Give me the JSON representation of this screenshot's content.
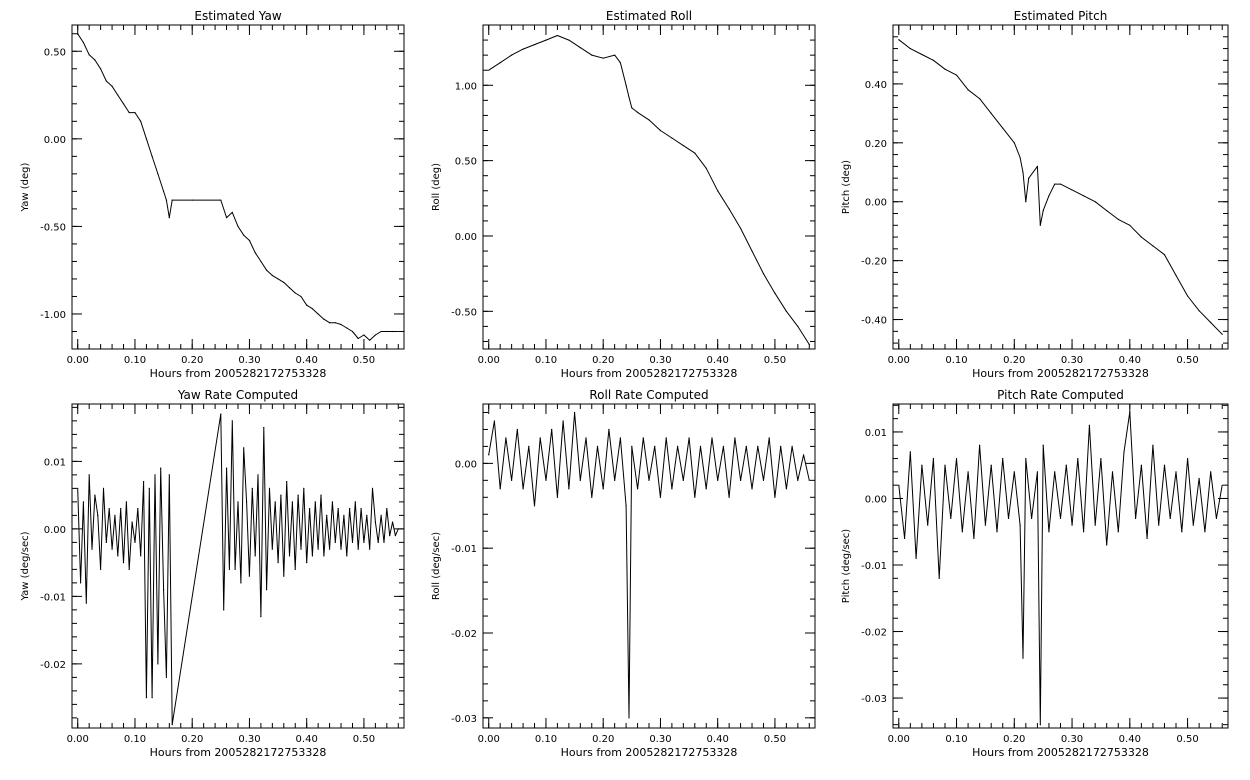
{
  "colors": {
    "background": "#ffffff",
    "line": "#000000",
    "axes": "#000000"
  },
  "chart_data": [
    {
      "type": "line",
      "title": "Estimated Yaw",
      "xlabel": "Hours from 2005282172753328",
      "ylabel": "Yaw (deg)",
      "xlim": [
        -0.01,
        0.57
      ],
      "ylim": [
        -1.2,
        0.65
      ],
      "xticks": [
        0.0,
        0.1,
        0.2,
        0.3,
        0.4,
        0.5
      ],
      "xtick_labels": [
        "0.00",
        "0.10",
        "0.20",
        "0.30",
        "0.40",
        "0.50"
      ],
      "yticks": [
        0.5,
        0.0,
        -0.5,
        -1.0
      ],
      "ytick_labels": [
        "0.50",
        "0.00",
        "-0.50",
        "-1.00"
      ],
      "grid": false,
      "series": [
        {
          "x": [
            0.0,
            0.01,
            0.02,
            0.03,
            0.04,
            0.05,
            0.06,
            0.07,
            0.08,
            0.09,
            0.1,
            0.11,
            0.12,
            0.13,
            0.14,
            0.15,
            0.155,
            0.16,
            0.165,
            0.2,
            0.25,
            0.26,
            0.27,
            0.28,
            0.29,
            0.3,
            0.31,
            0.32,
            0.33,
            0.34,
            0.35,
            0.36,
            0.37,
            0.38,
            0.39,
            0.4,
            0.41,
            0.42,
            0.43,
            0.44,
            0.45,
            0.46,
            0.47,
            0.48,
            0.49,
            0.5,
            0.51,
            0.52,
            0.53,
            0.54,
            0.55,
            0.56
          ],
          "y": [
            0.6,
            0.55,
            0.48,
            0.45,
            0.4,
            0.33,
            0.3,
            0.25,
            0.2,
            0.15,
            0.15,
            0.1,
            0.0,
            -0.1,
            -0.2,
            -0.3,
            -0.35,
            -0.45,
            -0.35,
            -0.35,
            -0.35,
            -0.45,
            -0.42,
            -0.5,
            -0.55,
            -0.58,
            -0.65,
            -0.7,
            -0.75,
            -0.78,
            -0.8,
            -0.82,
            -0.85,
            -0.88,
            -0.9,
            -0.95,
            -0.97,
            -1.0,
            -1.03,
            -1.05,
            -1.05,
            -1.06,
            -1.08,
            -1.1,
            -1.14,
            -1.12,
            -1.15,
            -1.12,
            -1.1,
            -1.1,
            -1.1,
            -1.1
          ]
        }
      ]
    },
    {
      "type": "line",
      "title": "Estimated Roll",
      "xlabel": "Hours from 2005282172753328",
      "ylabel": "Roll (deg)",
      "xlim": [
        -0.01,
        0.57
      ],
      "ylim": [
        -0.75,
        1.4
      ],
      "xticks": [
        0.0,
        0.1,
        0.2,
        0.3,
        0.4,
        0.5
      ],
      "xtick_labels": [
        "0.00",
        "0.10",
        "0.20",
        "0.30",
        "0.40",
        "0.50"
      ],
      "yticks": [
        1.0,
        0.5,
        0.0,
        -0.5
      ],
      "ytick_labels": [
        "1.00",
        "0.50",
        "0.00",
        "-0.50"
      ],
      "grid": false,
      "series": [
        {
          "x": [
            0.0,
            0.02,
            0.04,
            0.06,
            0.08,
            0.1,
            0.12,
            0.14,
            0.16,
            0.18,
            0.2,
            0.22,
            0.23,
            0.24,
            0.245,
            0.25,
            0.26,
            0.28,
            0.3,
            0.32,
            0.34,
            0.36,
            0.38,
            0.4,
            0.42,
            0.44,
            0.46,
            0.48,
            0.5,
            0.52,
            0.54,
            0.56
          ],
          "y": [
            1.1,
            1.15,
            1.2,
            1.24,
            1.27,
            1.3,
            1.33,
            1.3,
            1.25,
            1.2,
            1.18,
            1.2,
            1.15,
            1.0,
            0.92,
            0.85,
            0.82,
            0.77,
            0.7,
            0.65,
            0.6,
            0.55,
            0.45,
            0.3,
            0.18,
            0.05,
            -0.1,
            -0.25,
            -0.38,
            -0.5,
            -0.6,
            -0.72
          ]
        }
      ]
    },
    {
      "type": "line",
      "title": "Estimated Pitch",
      "xlabel": "Hours from 2005282172753328",
      "ylabel": "Pitch (deg)",
      "xlim": [
        -0.01,
        0.57
      ],
      "ylim": [
        -0.5,
        0.6
      ],
      "xticks": [
        0.0,
        0.1,
        0.2,
        0.3,
        0.4,
        0.5
      ],
      "xtick_labels": [
        "0.00",
        "0.10",
        "0.20",
        "0.30",
        "0.40",
        "0.50"
      ],
      "yticks": [
        0.4,
        0.2,
        0.0,
        -0.2,
        -0.4
      ],
      "ytick_labels": [
        "0.40",
        "0.20",
        "0.00",
        "-0.20",
        "-0.40"
      ],
      "grid": false,
      "series": [
        {
          "x": [
            0.0,
            0.02,
            0.04,
            0.06,
            0.08,
            0.1,
            0.12,
            0.14,
            0.16,
            0.18,
            0.2,
            0.21,
            0.215,
            0.22,
            0.225,
            0.24,
            0.245,
            0.25,
            0.26,
            0.27,
            0.28,
            0.3,
            0.32,
            0.34,
            0.36,
            0.38,
            0.4,
            0.42,
            0.44,
            0.46,
            0.48,
            0.5,
            0.52,
            0.54,
            0.56
          ],
          "y": [
            0.55,
            0.52,
            0.5,
            0.48,
            0.45,
            0.43,
            0.38,
            0.35,
            0.3,
            0.25,
            0.2,
            0.15,
            0.1,
            0.0,
            0.08,
            0.12,
            -0.08,
            -0.03,
            0.02,
            0.06,
            0.06,
            0.04,
            0.02,
            0.0,
            -0.03,
            -0.06,
            -0.08,
            -0.12,
            -0.15,
            -0.18,
            -0.25,
            -0.32,
            -0.37,
            -0.41,
            -0.45
          ]
        }
      ]
    },
    {
      "type": "line",
      "title": "Yaw Rate Computed",
      "xlabel": "Hours from 2005282172753328",
      "ylabel": "Yaw (deg/sec)",
      "xlim": [
        -0.01,
        0.57
      ],
      "ylim": [
        -0.0295,
        0.0185
      ],
      "xticks": [
        0.0,
        0.1,
        0.2,
        0.3,
        0.4,
        0.5
      ],
      "xtick_labels": [
        "0.00",
        "0.10",
        "0.20",
        "0.30",
        "0.40",
        "0.50"
      ],
      "yticks": [
        0.01,
        0.0,
        -0.01,
        -0.02
      ],
      "ytick_labels": [
        "0.01",
        "0.00",
        "-0.01",
        "-0.02"
      ],
      "grid": false,
      "series": [
        {
          "x": [
            0.0,
            0.005,
            0.01,
            0.015,
            0.02,
            0.025,
            0.03,
            0.035,
            0.04,
            0.045,
            0.05,
            0.055,
            0.06,
            0.065,
            0.07,
            0.075,
            0.08,
            0.085,
            0.09,
            0.095,
            0.1,
            0.105,
            0.11,
            0.115,
            0.12,
            0.125,
            0.13,
            0.135,
            0.14,
            0.145,
            0.15,
            0.155,
            0.16,
            0.165,
            0.25,
            0.255,
            0.26,
            0.265,
            0.27,
            0.275,
            0.28,
            0.285,
            0.29,
            0.295,
            0.3,
            0.305,
            0.31,
            0.315,
            0.32,
            0.325,
            0.33,
            0.335,
            0.34,
            0.345,
            0.35,
            0.355,
            0.36,
            0.365,
            0.37,
            0.375,
            0.38,
            0.385,
            0.39,
            0.395,
            0.4,
            0.405,
            0.41,
            0.415,
            0.42,
            0.425,
            0.43,
            0.435,
            0.44,
            0.445,
            0.45,
            0.455,
            0.46,
            0.465,
            0.47,
            0.475,
            0.48,
            0.485,
            0.49,
            0.495,
            0.5,
            0.505,
            0.51,
            0.515,
            0.52,
            0.525,
            0.53,
            0.535,
            0.54,
            0.545,
            0.55,
            0.555,
            0.56
          ],
          "y": [
            0.006,
            -0.008,
            0.004,
            -0.011,
            0.008,
            -0.003,
            0.005,
            0.002,
            -0.006,
            0.006,
            -0.002,
            0.003,
            -0.003,
            0.002,
            -0.004,
            0.003,
            -0.005,
            0.004,
            -0.006,
            0.001,
            -0.002,
            0.003,
            -0.004,
            0.007,
            -0.025,
            0.006,
            -0.025,
            0.008,
            -0.02,
            0.009,
            -0.009,
            -0.022,
            0.008,
            -0.029,
            0.017,
            -0.012,
            0.009,
            -0.006,
            0.016,
            -0.006,
            0.004,
            -0.008,
            0.012,
            0.004,
            -0.007,
            0.006,
            -0.004,
            0.008,
            -0.013,
            0.015,
            -0.009,
            0.006,
            -0.003,
            0.004,
            -0.005,
            0.005,
            -0.007,
            0.007,
            -0.004,
            0.004,
            -0.006,
            0.005,
            -0.003,
            0.006,
            -0.005,
            0.003,
            -0.004,
            0.004,
            -0.003,
            0.005,
            -0.004,
            0.002,
            -0.003,
            0.004,
            -0.002,
            0.003,
            -0.003,
            0.002,
            -0.004,
            0.003,
            -0.002,
            0.004,
            -0.003,
            0.003,
            -0.002,
            0.002,
            -0.003,
            0.006,
            0.001,
            -0.002,
            0.002,
            -0.002,
            0.003,
            -0.001,
            0.001,
            -0.001,
            0.0
          ]
        }
      ]
    },
    {
      "type": "line",
      "title": "Roll Rate Computed",
      "xlabel": "Hours from 2005282172753328",
      "ylabel": "Roll (deg/sec)",
      "xlim": [
        -0.01,
        0.57
      ],
      "ylim": [
        -0.0312,
        0.007
      ],
      "xticks": [
        0.0,
        0.1,
        0.2,
        0.3,
        0.4,
        0.5
      ],
      "xtick_labels": [
        "0.00",
        "0.10",
        "0.20",
        "0.30",
        "0.40",
        "0.50"
      ],
      "yticks": [
        0.0,
        -0.01,
        -0.02,
        -0.03
      ],
      "ytick_labels": [
        "0.00",
        "-0.01",
        "-0.02",
        "-0.03"
      ],
      "grid": false,
      "series": [
        {
          "x": [
            0.0,
            0.01,
            0.02,
            0.03,
            0.04,
            0.05,
            0.06,
            0.07,
            0.08,
            0.09,
            0.1,
            0.11,
            0.12,
            0.13,
            0.14,
            0.15,
            0.16,
            0.17,
            0.18,
            0.19,
            0.2,
            0.21,
            0.22,
            0.23,
            0.24,
            0.245,
            0.25,
            0.26,
            0.27,
            0.28,
            0.29,
            0.3,
            0.31,
            0.32,
            0.33,
            0.34,
            0.35,
            0.36,
            0.37,
            0.38,
            0.39,
            0.4,
            0.41,
            0.42,
            0.43,
            0.44,
            0.45,
            0.46,
            0.47,
            0.48,
            0.49,
            0.5,
            0.51,
            0.52,
            0.53,
            0.54,
            0.55,
            0.56
          ],
          "y": [
            0.001,
            0.005,
            -0.003,
            0.003,
            -0.002,
            0.004,
            -0.003,
            0.002,
            -0.005,
            0.003,
            -0.002,
            0.004,
            -0.004,
            0.005,
            -0.003,
            0.006,
            -0.002,
            0.003,
            -0.004,
            0.002,
            -0.003,
            0.004,
            -0.002,
            0.003,
            -0.005,
            -0.03,
            0.002,
            -0.003,
            0.003,
            -0.002,
            0.002,
            -0.004,
            0.003,
            -0.003,
            0.002,
            -0.002,
            0.003,
            -0.004,
            0.002,
            -0.003,
            0.003,
            -0.002,
            0.002,
            -0.004,
            0.003,
            -0.002,
            0.002,
            -0.003,
            0.002,
            -0.002,
            0.003,
            -0.004,
            0.002,
            -0.003,
            0.002,
            -0.002,
            0.001,
            -0.002
          ]
        }
      ]
    },
    {
      "type": "line",
      "title": "Pitch Rate Computed",
      "xlabel": "Hours from 2005282172753328",
      "ylabel": "Pitch (deg/sec)",
      "xlim": [
        -0.01,
        0.57
      ],
      "ylim": [
        -0.0345,
        0.0142
      ],
      "xticks": [
        0.0,
        0.1,
        0.2,
        0.3,
        0.4,
        0.5
      ],
      "xtick_labels": [
        "0.00",
        "0.10",
        "0.20",
        "0.30",
        "0.40",
        "0.50"
      ],
      "yticks": [
        0.01,
        0.0,
        -0.01,
        -0.02,
        -0.03
      ],
      "ytick_labels": [
        "0.01",
        "0.00",
        "-0.01",
        "-0.02",
        "-0.03"
      ],
      "grid": false,
      "series": [
        {
          "x": [
            0.0,
            0.01,
            0.02,
            0.03,
            0.04,
            0.05,
            0.06,
            0.07,
            0.08,
            0.09,
            0.1,
            0.11,
            0.12,
            0.13,
            0.14,
            0.15,
            0.16,
            0.17,
            0.18,
            0.19,
            0.2,
            0.21,
            0.215,
            0.22,
            0.23,
            0.24,
            0.245,
            0.25,
            0.26,
            0.27,
            0.28,
            0.29,
            0.3,
            0.31,
            0.32,
            0.33,
            0.34,
            0.35,
            0.36,
            0.37,
            0.38,
            0.39,
            0.4,
            0.41,
            0.42,
            0.43,
            0.44,
            0.45,
            0.46,
            0.47,
            0.48,
            0.49,
            0.5,
            0.51,
            0.52,
            0.53,
            0.54,
            0.55,
            0.56
          ],
          "y": [
            0.002,
            -0.006,
            0.007,
            -0.009,
            0.005,
            -0.004,
            0.006,
            -0.012,
            0.005,
            -0.003,
            0.006,
            -0.005,
            0.004,
            -0.006,
            0.008,
            -0.004,
            0.005,
            -0.005,
            0.006,
            -0.003,
            0.004,
            -0.004,
            -0.024,
            0.006,
            -0.003,
            0.004,
            -0.034,
            0.008,
            -0.005,
            0.004,
            -0.003,
            0.005,
            -0.004,
            0.006,
            -0.005,
            0.011,
            -0.004,
            0.006,
            -0.007,
            0.004,
            -0.005,
            0.007,
            0.013,
            -0.003,
            0.005,
            -0.006,
            0.008,
            -0.004,
            0.005,
            -0.003,
            0.004,
            -0.005,
            0.006,
            -0.004,
            0.003,
            -0.005,
            0.004,
            -0.003,
            0.002
          ]
        }
      ]
    }
  ]
}
